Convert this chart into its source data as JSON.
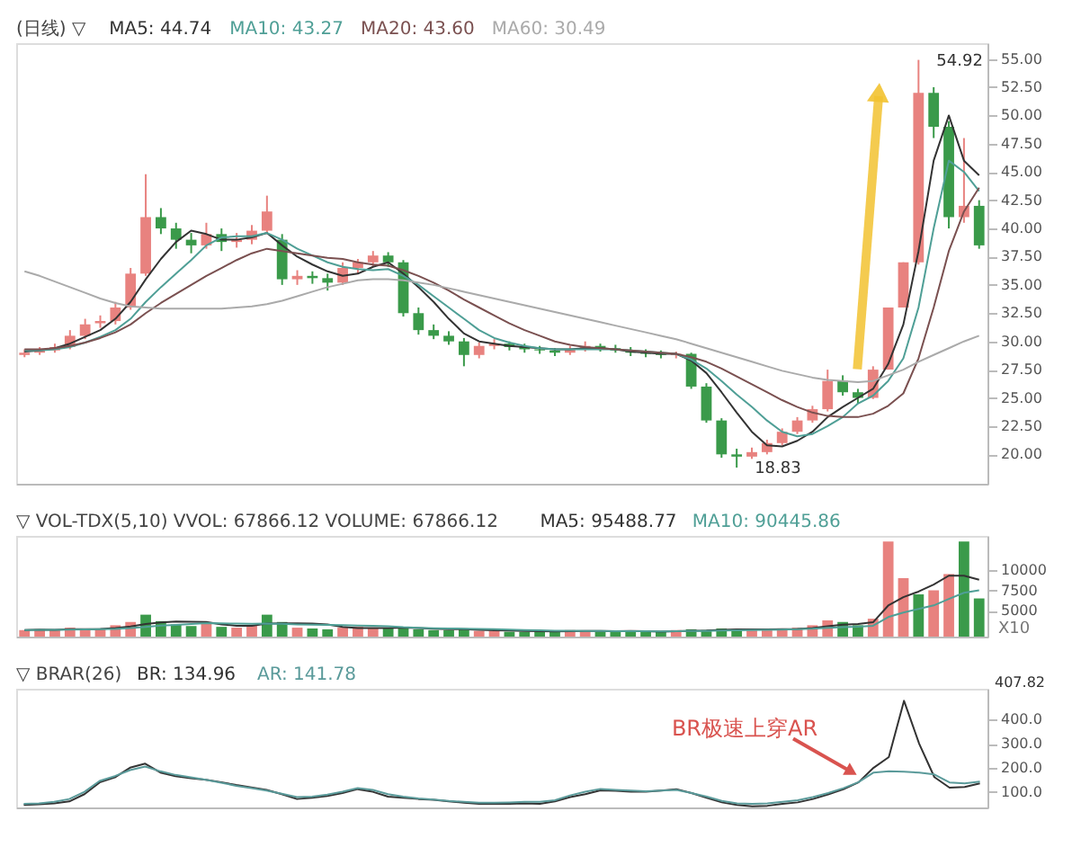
{
  "chart_data": [
    {
      "type": "candlestick",
      "title": "(日线) ▽",
      "legend": "top left",
      "tick_labels": "y",
      "grid": false,
      "categories": [
        null,
        null,
        null,
        null,
        null,
        null,
        null,
        null,
        null,
        null,
        null,
        null,
        null,
        null,
        null,
        null,
        null,
        null,
        null,
        null,
        null,
        null,
        null,
        null,
        null,
        null,
        null,
        null,
        null,
        null,
        null,
        null,
        null,
        null,
        null,
        null,
        null,
        null,
        null,
        null,
        null,
        null,
        null,
        null,
        null,
        null,
        null,
        null,
        null,
        null,
        null,
        null,
        null,
        null,
        null,
        null,
        null,
        null,
        null,
        null,
        null,
        null,
        null,
        null
      ],
      "ohlc": [
        [
          28.8,
          29.3,
          28.6,
          29.0
        ],
        [
          29.0,
          29.5,
          28.8,
          29.2
        ],
        [
          29.2,
          29.8,
          29.0,
          29.5
        ],
        [
          29.5,
          31.0,
          29.3,
          30.5
        ],
        [
          30.5,
          32.0,
          30.2,
          31.5
        ],
        [
          31.6,
          32.3,
          31.2,
          31.8
        ],
        [
          31.8,
          33.5,
          31.5,
          33.0
        ],
        [
          33.0,
          36.5,
          32.8,
          36.0
        ],
        [
          36.0,
          44.8,
          35.8,
          41.0
        ],
        [
          41.0,
          41.8,
          39.5,
          40.0
        ],
        [
          40.0,
          40.5,
          38.2,
          39.0
        ],
        [
          39.0,
          39.6,
          37.8,
          38.5
        ],
        [
          38.5,
          40.5,
          38.2,
          39.5
        ],
        [
          39.5,
          40.0,
          38.0,
          38.8
        ],
        [
          38.8,
          39.6,
          38.3,
          39.0
        ],
        [
          39.0,
          40.3,
          38.6,
          39.8
        ],
        [
          39.8,
          42.9,
          39.5,
          41.5
        ],
        [
          39.0,
          39.5,
          35.0,
          35.5
        ],
        [
          35.5,
          36.3,
          35.0,
          35.8
        ],
        [
          35.8,
          36.2,
          35.1,
          35.6
        ],
        [
          35.6,
          36.0,
          34.5,
          35.2
        ],
        [
          35.2,
          37.0,
          35.0,
          36.5
        ],
        [
          36.5,
          37.3,
          36.0,
          37.0
        ],
        [
          37.0,
          38.0,
          36.6,
          37.6
        ],
        [
          37.6,
          37.9,
          36.6,
          37.0
        ],
        [
          37.0,
          37.2,
          32.2,
          32.5
        ],
        [
          32.5,
          33.0,
          30.6,
          31.0
        ],
        [
          31.0,
          31.5,
          30.2,
          30.5
        ],
        [
          30.5,
          30.9,
          29.7,
          30.0
        ],
        [
          30.0,
          30.3,
          27.8,
          28.8
        ],
        [
          28.8,
          29.9,
          28.5,
          29.6
        ],
        [
          29.6,
          30.2,
          29.3,
          29.8
        ],
        [
          29.8,
          30.0,
          29.2,
          29.5
        ],
        [
          29.5,
          29.8,
          29.0,
          29.3
        ],
        [
          29.3,
          29.6,
          28.9,
          29.2
        ],
        [
          29.2,
          29.4,
          28.7,
          29.0
        ],
        [
          29.0,
          29.6,
          28.8,
          29.3
        ],
        [
          29.3,
          30.0,
          29.1,
          29.6
        ],
        [
          29.6,
          29.8,
          29.1,
          29.4
        ],
        [
          29.4,
          29.7,
          29.0,
          29.2
        ],
        [
          29.2,
          29.5,
          28.7,
          29.0
        ],
        [
          29.0,
          29.3,
          28.6,
          28.9
        ],
        [
          28.9,
          29.2,
          28.5,
          28.8
        ],
        [
          28.8,
          29.1,
          28.5,
          28.9
        ],
        [
          28.9,
          29.0,
          25.8,
          26.0
        ],
        [
          26.0,
          26.3,
          22.8,
          23.0
        ],
        [
          23.0,
          23.2,
          19.7,
          20.0
        ],
        [
          20.0,
          20.5,
          18.83,
          19.8
        ],
        [
          19.8,
          20.6,
          19.6,
          20.2
        ],
        [
          20.2,
          21.3,
          20.0,
          21.0
        ],
        [
          21.0,
          22.3,
          20.8,
          22.0
        ],
        [
          22.0,
          23.3,
          21.8,
          23.0
        ],
        [
          23.0,
          24.3,
          22.8,
          24.0
        ],
        [
          24.0,
          27.5,
          23.8,
          26.5
        ],
        [
          26.5,
          27.0,
          25.2,
          25.5
        ],
        [
          25.5,
          25.8,
          24.5,
          25.0
        ],
        [
          25.0,
          27.8,
          24.9,
          27.5
        ],
        [
          27.5,
          33.0,
          27.5,
          33.0
        ],
        [
          33.0,
          37.0,
          33.0,
          37.0
        ],
        [
          37.0,
          54.92,
          36.8,
          52.0
        ],
        [
          52.0,
          52.5,
          48.0,
          49.0
        ],
        [
          49.0,
          49.5,
          40.0,
          41.0
        ],
        [
          41.0,
          48.0,
          40.5,
          42.0
        ],
        [
          42.0,
          42.5,
          38.2,
          38.5
        ]
      ],
      "colors": [
        "#e8827f",
        "#e8827f",
        "#e8827f",
        "#e8827f",
        "#e8827f",
        "#e8827f",
        "#e8827f",
        "#e8827f",
        "#e8827f",
        "#3a9a4a",
        "#3a9a4a",
        "#3a9a4a",
        "#e8827f",
        "#3a9a4a",
        "#e8827f",
        "#e8827f",
        "#e8827f",
        "#3a9a4a",
        "#e8827f",
        "#3a9a4a",
        "#3a9a4a",
        "#e8827f",
        "#e8827f",
        "#e8827f",
        "#3a9a4a",
        "#3a9a4a",
        "#3a9a4a",
        "#3a9a4a",
        "#3a9a4a",
        "#3a9a4a",
        "#e8827f",
        "#e8827f",
        "#3a9a4a",
        "#3a9a4a",
        "#3a9a4a",
        "#3a9a4a",
        "#e8827f",
        "#e8827f",
        "#3a9a4a",
        "#3a9a4a",
        "#3a9a4a",
        "#3a9a4a",
        "#3a9a4a",
        "#e8827f",
        "#3a9a4a",
        "#3a9a4a",
        "#3a9a4a",
        "#3a9a4a",
        "#e8827f",
        "#e8827f",
        "#e8827f",
        "#e8827f",
        "#e8827f",
        "#e8827f",
        "#3a9a4a",
        "#3a9a4a",
        "#e8827f",
        "#e8827f",
        "#e8827f",
        "#e8827f",
        "#3a9a4a",
        "#3a9a4a",
        "#e8827f",
        "#3a9a4a"
      ],
      "series": [
        {
          "name": "MA5: 44.74",
          "type": "line",
          "color": "#333333",
          "values": [
            29.1,
            29.2,
            29.4,
            29.8,
            30.4,
            31.0,
            32.0,
            33.5,
            35.5,
            37.3,
            38.8,
            39.8,
            39.5,
            39.0,
            39.0,
            39.2,
            39.6,
            38.5,
            37.5,
            36.8,
            36.2,
            35.8,
            36.0,
            36.6,
            37.0,
            36.0,
            34.8,
            33.5,
            32.0,
            30.7,
            30.0,
            29.8,
            29.6,
            29.5,
            29.4,
            29.3,
            29.3,
            29.4,
            29.4,
            29.3,
            29.1,
            29.0,
            28.9,
            28.9,
            28.3,
            27.2,
            25.5,
            23.7,
            22.0,
            20.8,
            20.7,
            21.2,
            22.0,
            23.3,
            24.2,
            25.0,
            25.8,
            28.0,
            31.5,
            38.0,
            46.0,
            50.0,
            46.0,
            44.7
          ]
        },
        {
          "name": "MA10: 43.27",
          "type": "line",
          "color": "#4f9f96",
          "values": [
            29.2,
            29.2,
            29.3,
            29.5,
            29.9,
            30.4,
            31.0,
            32.0,
            33.5,
            34.8,
            36.0,
            37.2,
            38.5,
            39.2,
            39.3,
            39.3,
            39.6,
            39.0,
            38.2,
            37.6,
            37.0,
            36.6,
            36.4,
            36.3,
            36.4,
            35.8,
            35.0,
            34.0,
            33.0,
            32.0,
            31.0,
            30.3,
            29.9,
            29.6,
            29.4,
            29.3,
            29.3,
            29.3,
            29.3,
            29.3,
            29.2,
            29.1,
            29.0,
            28.9,
            28.4,
            27.6,
            26.5,
            25.3,
            24.2,
            23.0,
            22.0,
            21.6,
            21.8,
            22.5,
            23.3,
            24.5,
            25.2,
            26.5,
            28.5,
            33.0,
            40.0,
            46.0,
            45.0,
            43.3
          ]
        },
        {
          "name": "MA20: 43.60",
          "type": "line",
          "color": "#7a5050",
          "values": [
            29.3,
            29.3,
            29.4,
            29.6,
            29.9,
            30.3,
            30.8,
            31.5,
            32.5,
            33.4,
            34.2,
            35.0,
            35.8,
            36.5,
            37.2,
            37.8,
            38.2,
            38.0,
            37.8,
            37.6,
            37.4,
            37.3,
            37.0,
            36.8,
            36.7,
            36.3,
            35.8,
            35.2,
            34.5,
            33.7,
            33.0,
            32.3,
            31.6,
            31.0,
            30.5,
            30.0,
            29.7,
            29.5,
            29.4,
            29.3,
            29.2,
            29.1,
            29.0,
            28.9,
            28.6,
            28.2,
            27.6,
            26.9,
            26.2,
            25.5,
            24.8,
            24.2,
            23.7,
            23.4,
            23.3,
            23.3,
            23.6,
            24.3,
            25.4,
            28.5,
            33.0,
            38.0,
            41.5,
            43.6
          ]
        },
        {
          "name": "MA60: 30.49",
          "type": "line",
          "color": "#aaaaaa",
          "values": [
            36.2,
            35.8,
            35.3,
            34.8,
            34.3,
            33.8,
            33.4,
            33.1,
            33.0,
            32.9,
            32.9,
            32.9,
            32.9,
            32.9,
            33.0,
            33.1,
            33.3,
            33.6,
            34.0,
            34.4,
            34.8,
            35.1,
            35.4,
            35.5,
            35.5,
            35.4,
            35.2,
            35.0,
            34.7,
            34.4,
            34.1,
            33.8,
            33.5,
            33.2,
            32.9,
            32.6,
            32.3,
            32.0,
            31.7,
            31.4,
            31.1,
            30.8,
            30.5,
            30.2,
            29.8,
            29.4,
            29.0,
            28.6,
            28.2,
            27.8,
            27.4,
            27.1,
            26.8,
            26.6,
            26.5,
            26.4,
            26.5,
            27.0,
            27.5,
            28.2,
            28.8,
            29.4,
            30.0,
            30.5
          ]
        }
      ],
      "ylim": [
        17.4,
        56.4
      ],
      "yticks": [
        {
          "value": 20,
          "label": "20.00"
        },
        {
          "value": 22.5,
          "label": "22.50"
        },
        {
          "value": 25,
          "label": "25.00"
        },
        {
          "value": 27.5,
          "label": "27.50"
        },
        {
          "value": 30,
          "label": "30.00"
        },
        {
          "value": 32.5,
          "label": "32.50"
        },
        {
          "value": 35,
          "label": "35.00"
        },
        {
          "value": 37.5,
          "label": "37.50"
        },
        {
          "value": 40,
          "label": "40.00"
        },
        {
          "value": 42.5,
          "label": "42.50"
        },
        {
          "value": 45,
          "label": "45.00"
        },
        {
          "value": 47.5,
          "label": "47.50"
        },
        {
          "value": 50,
          "label": "50.00"
        },
        {
          "value": 52.5,
          "label": "52.50"
        },
        {
          "value": 55,
          "label": "55.00"
        }
      ],
      "annotations": [
        "54.92",
        "18.83"
      ]
    },
    {
      "type": "bar",
      "title": "▽ VOL-TDX(5,10) VVOL: 67866.12  VOLUME: 67866.12",
      "legend": "top",
      "tick_labels": "y",
      "grid": false,
      "categories": [
        null,
        null,
        null,
        null,
        null,
        null,
        null,
        null,
        null,
        null,
        null,
        null,
        null,
        null,
        null,
        null,
        null,
        null,
        null,
        null,
        null,
        null,
        null,
        null,
        null,
        null,
        null,
        null,
        null,
        null,
        null,
        null,
        null,
        null,
        null,
        null,
        null,
        null,
        null,
        null,
        null,
        null,
        null,
        null,
        null,
        null,
        null,
        null,
        null,
        null,
        null,
        null,
        null,
        null,
        null,
        null,
        null,
        null,
        null,
        null,
        null,
        null,
        null,
        null
      ],
      "series": [
        {
          "type": "bar",
          "colors": [
            "#e8827f",
            "#e8827f",
            "#e8827f",
            "#e8827f",
            "#e8827f",
            "#e8827f",
            "#e8827f",
            "#e8827f",
            "#3a9a4a",
            "#3a9a4a",
            "#3a9a4a",
            "#3a9a4a",
            "#e8827f",
            "#3a9a4a",
            "#e8827f",
            "#e8827f",
            "#3a9a4a",
            "#3a9a4a",
            "#e8827f",
            "#3a9a4a",
            "#3a9a4a",
            "#e8827f",
            "#e8827f",
            "#e8827f",
            "#3a9a4a",
            "#3a9a4a",
            "#3a9a4a",
            "#3a9a4a",
            "#3a9a4a",
            "#3a9a4a",
            "#e8827f",
            "#e8827f",
            "#3a9a4a",
            "#3a9a4a",
            "#3a9a4a",
            "#3a9a4a",
            "#e8827f",
            "#e8827f",
            "#3a9a4a",
            "#3a9a4a",
            "#3a9a4a",
            "#3a9a4a",
            "#3a9a4a",
            "#e8827f",
            "#3a9a4a",
            "#3a9a4a",
            "#3a9a4a",
            "#3a9a4a",
            "#e8827f",
            "#e8827f",
            "#e8827f",
            "#e8827f",
            "#e8827f",
            "#e8827f",
            "#3a9a4a",
            "#3a9a4a",
            "#e8827f",
            "#e8827f",
            "#e8827f",
            "#3a9a4a",
            "#e8827f",
            "#e8827f",
            "#3a9a4a",
            "#3a9a4a"
          ],
          "values": [
            2600,
            2700,
            2600,
            2900,
            2800,
            2700,
            3200,
            3600,
            4500,
            3700,
            3300,
            3100,
            3400,
            3000,
            2900,
            3200,
            4500,
            3600,
            2900,
            2800,
            2700,
            2900,
            3000,
            2900,
            2800,
            2900,
            2700,
            2600,
            2600,
            2700,
            2500,
            2500,
            2400,
            2400,
            2500,
            2400,
            2600,
            2500,
            2400,
            2400,
            2500,
            2400,
            2400,
            2600,
            2700,
            2600,
            2800,
            2700,
            2600,
            2700,
            2800,
            2900,
            3200,
            3800,
            3600,
            3200,
            4000,
            13500,
            9000,
            7000,
            7500,
            9500,
            13500,
            6500
          ]
        },
        {
          "name": "MA5: 95488.77",
          "type": "line",
          "color": "#333333",
          "values": [
            2600,
            2650,
            2630,
            2700,
            2720,
            2740,
            2840,
            3040,
            3360,
            3540,
            3660,
            3640,
            3600,
            3300,
            3140,
            3120,
            3400,
            3440,
            3420,
            3400,
            3300,
            2980,
            2860,
            2860,
            2860,
            2900,
            2860,
            2780,
            2720,
            2700,
            2620,
            2580,
            2540,
            2500,
            2460,
            2440,
            2460,
            2480,
            2480,
            2460,
            2480,
            2460,
            2420,
            2460,
            2520,
            2540,
            2620,
            2680,
            2680,
            2680,
            2720,
            2740,
            2840,
            3080,
            3260,
            3340,
            3560,
            5620,
            6660,
            7340,
            8200,
            9300,
            9300,
            8800
          ]
        },
        {
          "name": "MA10: 90445.86",
          "type": "line",
          "color": "#4f9f96",
          "values": [
            2600,
            2620,
            2630,
            2660,
            2690,
            2700,
            2750,
            2850,
            3000,
            3150,
            3250,
            3340,
            3470,
            3420,
            3400,
            3380,
            3400,
            3370,
            3300,
            3260,
            3250,
            3210,
            3150,
            3130,
            3080,
            2950,
            2880,
            2820,
            2790,
            2780,
            2740,
            2700,
            2650,
            2610,
            2580,
            2530,
            2520,
            2500,
            2480,
            2460,
            2460,
            2460,
            2450,
            2470,
            2500,
            2500,
            2540,
            2570,
            2600,
            2620,
            2670,
            2700,
            2760,
            2880,
            2970,
            3010,
            3140,
            4200,
            4760,
            5210,
            5640,
            6440,
            7200,
            7500
          ]
        }
      ],
      "ylim": [
        1800,
        14200
      ],
      "yticks": [
        5000,
        7500,
        10000
      ],
      "annotations": [
        "X10"
      ]
    },
    {
      "type": "line",
      "title": "▽ BRAR(26)",
      "legend": "top left",
      "tick_labels": "y",
      "grid": false,
      "categories": [
        null,
        null,
        null,
        null,
        null,
        null,
        null,
        null,
        null,
        null,
        null,
        null,
        null,
        null,
        null,
        null,
        null,
        null,
        null,
        null,
        null,
        null,
        null,
        null,
        null,
        null,
        null,
        null,
        null,
        null,
        null,
        null,
        null,
        null,
        null,
        null,
        null,
        null,
        null,
        null,
        null,
        null,
        null,
        null,
        null,
        null,
        null,
        null,
        null,
        null,
        null,
        null,
        null,
        null,
        null,
        null,
        null,
        null,
        null,
        null,
        null,
        null,
        null,
        null
      ],
      "series": [
        {
          "name": "BR: 134.96",
          "color": "#333333",
          "values": [
            45,
            48,
            52,
            60,
            90,
            139,
            160,
            200,
            217,
            180,
            165,
            156,
            150,
            140,
            128,
            118,
            108,
            90,
            70,
            75,
            83,
            95,
            111,
            100,
            80,
            75,
            70,
            67,
            60,
            55,
            50,
            50,
            50,
            52,
            50,
            60,
            78,
            90,
            106,
            104,
            100,
            100,
            105,
            111,
            95,
            75,
            56,
            45,
            40,
            42,
            50,
            56,
            70,
            89,
            110,
            139,
            200,
            244,
            478,
            300,
            161,
            117,
            120,
            135
          ]
        },
        {
          "name": "AR: 141.78",
          "color": "#5a9a9a",
          "values": [
            50,
            52,
            58,
            70,
            100,
            145,
            165,
            190,
            205,
            185,
            170,
            160,
            150,
            138,
            125,
            115,
            105,
            92,
            78,
            80,
            88,
            100,
            115,
            108,
            90,
            80,
            72,
            68,
            62,
            58,
            55,
            55,
            56,
            58,
            58,
            65,
            85,
            100,
            112,
            108,
            105,
            102,
            105,
            108,
            95,
            80,
            62,
            52,
            50,
            52,
            58,
            65,
            78,
            95,
            115,
            140,
            180,
            185,
            183,
            180,
            172,
            139,
            135,
            142
          ]
        }
      ],
      "ylim": [
        35,
        528
      ],
      "yticks": [
        {
          "value": 100,
          "label": "100.0"
        },
        {
          "value": 200,
          "label": "200.0"
        },
        {
          "value": 300,
          "label": "300.0"
        },
        {
          "value": 400,
          "label": "400.0"
        }
      ],
      "annotations": [
        "407.82",
        "BR极速上穿AR"
      ]
    }
  ]
}
